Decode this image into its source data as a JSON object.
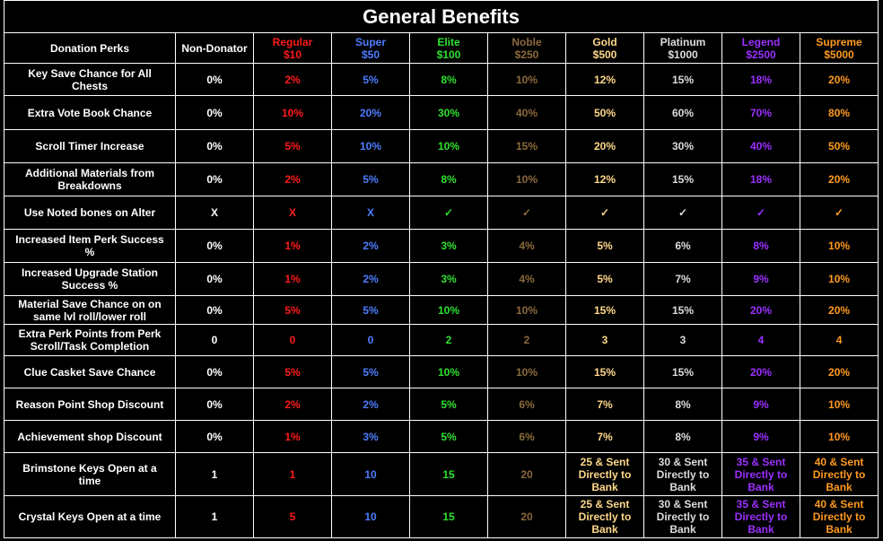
{
  "title": "General Benefits",
  "header": {
    "perk": "Donation Perks",
    "base": "Non-Donator",
    "tiers": [
      {
        "name": "Regular",
        "price": "$10",
        "color": "#ff1a1a"
      },
      {
        "name": "Super",
        "price": "$50",
        "color": "#4d7dff"
      },
      {
        "name": "Elite",
        "price": "$100",
        "color": "#2ee02e"
      },
      {
        "name": "Noble",
        "price": "$250",
        "color": "#8a6a3c"
      },
      {
        "name": "Gold",
        "price": "$500",
        "color": "#ffd98a"
      },
      {
        "name": "Platinum",
        "price": "$1000",
        "color": "#dcdcdc"
      },
      {
        "name": "Legend",
        "price": "$2500",
        "color": "#9b30ff"
      },
      {
        "name": "Supreme",
        "price": "$5000",
        "color": "#ff9a1f"
      }
    ]
  },
  "rows": [
    {
      "perk": "Key Save Chance for All Chests",
      "values": [
        "0%",
        "2%",
        "5%",
        "8%",
        "10%",
        "12%",
        "15%",
        "18%",
        "20%"
      ]
    },
    {
      "perk": "Extra Vote Book Chance",
      "values": [
        "0%",
        "10%",
        "20%",
        "30%",
        "40%",
        "50%",
        "60%",
        "70%",
        "80%"
      ]
    },
    {
      "perk": "Scroll Timer Increase",
      "values": [
        "0%",
        "5%",
        "10%",
        "10%",
        "15%",
        "20%",
        "30%",
        "40%",
        "50%"
      ]
    },
    {
      "perk": "Additional Materials from Breakdowns",
      "values": [
        "0%",
        "2%",
        "5%",
        "8%",
        "10%",
        "12%",
        "15%",
        "18%",
        "20%"
      ]
    },
    {
      "perk": "Use Noted bones on Alter",
      "values": [
        "X",
        "X",
        "X",
        "✓",
        "✓",
        "✓",
        "✓",
        "✓",
        "✓"
      ]
    },
    {
      "perk": "Increased Item Perk Success %",
      "values": [
        "0%",
        "1%",
        "2%",
        "3%",
        "4%",
        "5%",
        "6%",
        "8%",
        "10%"
      ]
    },
    {
      "perk": "Increased Upgrade Station Success %",
      "values": [
        "0%",
        "1%",
        "2%",
        "3%",
        "4%",
        "5%",
        "7%",
        "9%",
        "10%"
      ]
    },
    {
      "perk": "Material Save Chance on on same lvl roll/lower roll",
      "values": [
        "0%",
        "5%",
        "5%",
        "10%",
        "10%",
        "15%",
        "15%",
        "20%",
        "20%"
      ]
    },
    {
      "perk": "Extra Perk Points from Perk Scroll/Task Completion",
      "values": [
        "0",
        "0",
        "0",
        "2",
        "2",
        "3",
        "3",
        "4",
        "4"
      ]
    },
    {
      "perk": "Clue Casket Save Chance",
      "values": [
        "0%",
        "5%",
        "5%",
        "10%",
        "10%",
        "15%",
        "15%",
        "20%",
        "20%"
      ]
    },
    {
      "perk": "Reason Point Shop Discount",
      "values": [
        "0%",
        "2%",
        "2%",
        "5%",
        "6%",
        "7%",
        "8%",
        "9%",
        "10%"
      ]
    },
    {
      "perk": "Achievement shop Discount",
      "values": [
        "0%",
        "1%",
        "3%",
        "5%",
        "6%",
        "7%",
        "8%",
        "9%",
        "10%"
      ]
    },
    {
      "perk": "Brimstone Keys Open at a time",
      "values": [
        "1",
        "1",
        "10",
        "15",
        "20",
        "25 & Sent Directly to Bank",
        "30 & Sent Directly to Bank",
        "35 & Sent Directly to Bank",
        "40 & Sent Directly to Bank"
      ]
    },
    {
      "perk": "Crystal Keys Open at a time",
      "values": [
        "1",
        "5",
        "10",
        "15",
        "20",
        "25 & Sent Directly to Bank",
        "30 & Sent Directly to Bank",
        "35 & Sent Directly to Bank",
        "40 & Sent Directly to Bank"
      ]
    }
  ]
}
